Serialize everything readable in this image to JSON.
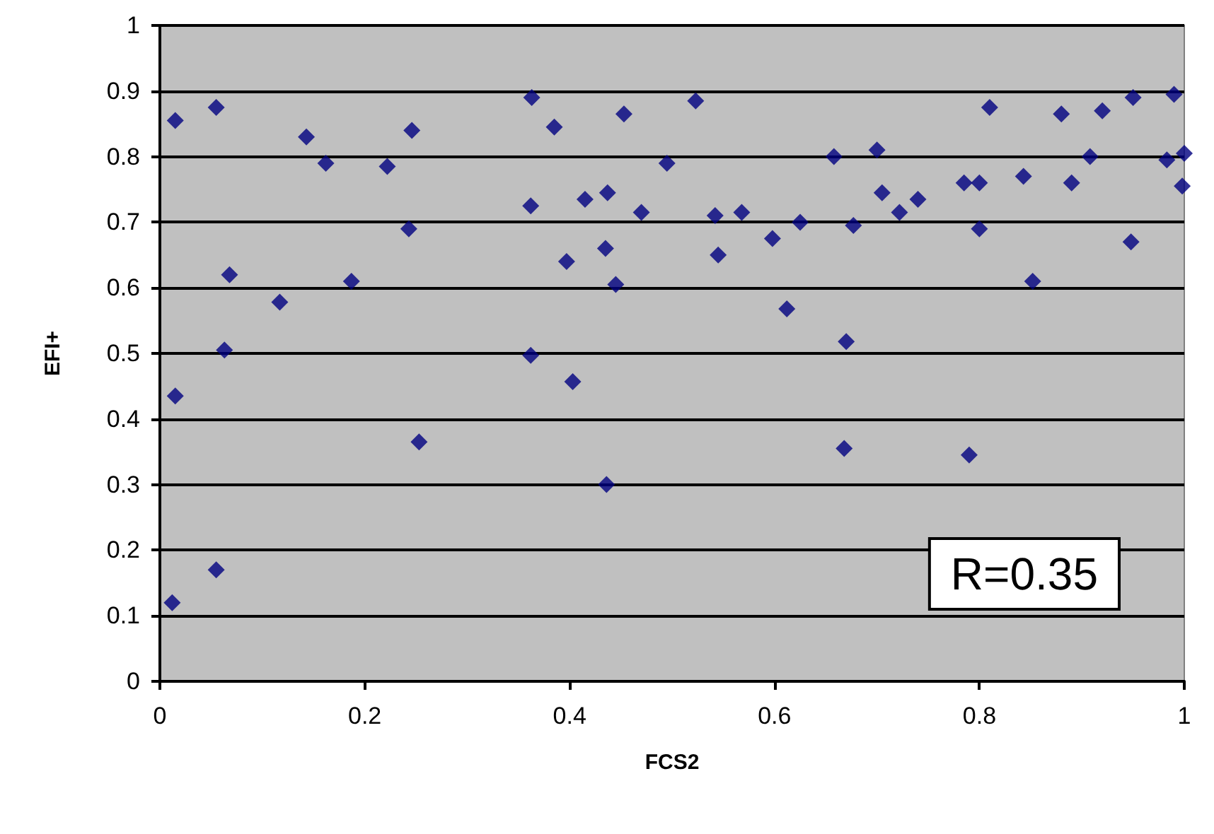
{
  "chart_data": {
    "type": "scatter",
    "xlabel": "FCS2",
    "ylabel": "EFI+",
    "x": [
      0.012,
      0.015,
      0.015,
      0.055,
      0.055,
      0.063,
      0.068,
      0.117,
      0.143,
      0.162,
      0.187,
      0.222,
      0.243,
      0.246,
      0.253,
      0.362,
      0.363,
      0.362,
      0.385,
      0.397,
      0.403,
      0.415,
      0.435,
      0.437,
      0.436,
      0.445,
      0.453,
      0.47,
      0.495,
      0.523,
      0.542,
      0.545,
      0.568,
      0.598,
      0.612,
      0.625,
      0.658,
      0.668,
      0.67,
      0.677,
      0.7,
      0.705,
      0.722,
      0.74,
      0.785,
      0.79,
      0.8,
      0.8,
      0.81,
      0.843,
      0.852,
      0.88,
      0.89,
      0.908,
      0.92,
      0.948,
      0.95,
      0.983,
      0.99,
      1.0,
      0.998
    ],
    "values": [
      0.12,
      0.435,
      0.855,
      0.875,
      0.17,
      0.505,
      0.62,
      0.578,
      0.83,
      0.79,
      0.61,
      0.785,
      0.69,
      0.84,
      0.365,
      0.725,
      0.89,
      0.497,
      0.845,
      0.64,
      0.457,
      0.735,
      0.66,
      0.745,
      0.3,
      0.605,
      0.865,
      0.715,
      0.79,
      0.885,
      0.71,
      0.65,
      0.715,
      0.675,
      0.568,
      0.7,
      0.8,
      0.355,
      0.518,
      0.695,
      0.81,
      0.745,
      0.715,
      0.735,
      0.76,
      0.345,
      0.69,
      0.76,
      0.875,
      0.77,
      0.61,
      0.865,
      0.76,
      0.8,
      0.87,
      0.67,
      0.89,
      0.795,
      0.895,
      0.805,
      0.755
    ],
    "color": "#000080",
    "marker": "diamond",
    "grid": "y",
    "xlim": [
      0,
      1
    ],
    "xticks": [
      0,
      0.2,
      0.4,
      0.6,
      0.8,
      1
    ],
    "ylim": [
      0,
      1
    ],
    "yticks": [
      0,
      0.1,
      0.2,
      0.3,
      0.4,
      0.5,
      0.6,
      0.7,
      0.8,
      0.9,
      1
    ],
    "annotations": [
      "R=0.35"
    ]
  }
}
